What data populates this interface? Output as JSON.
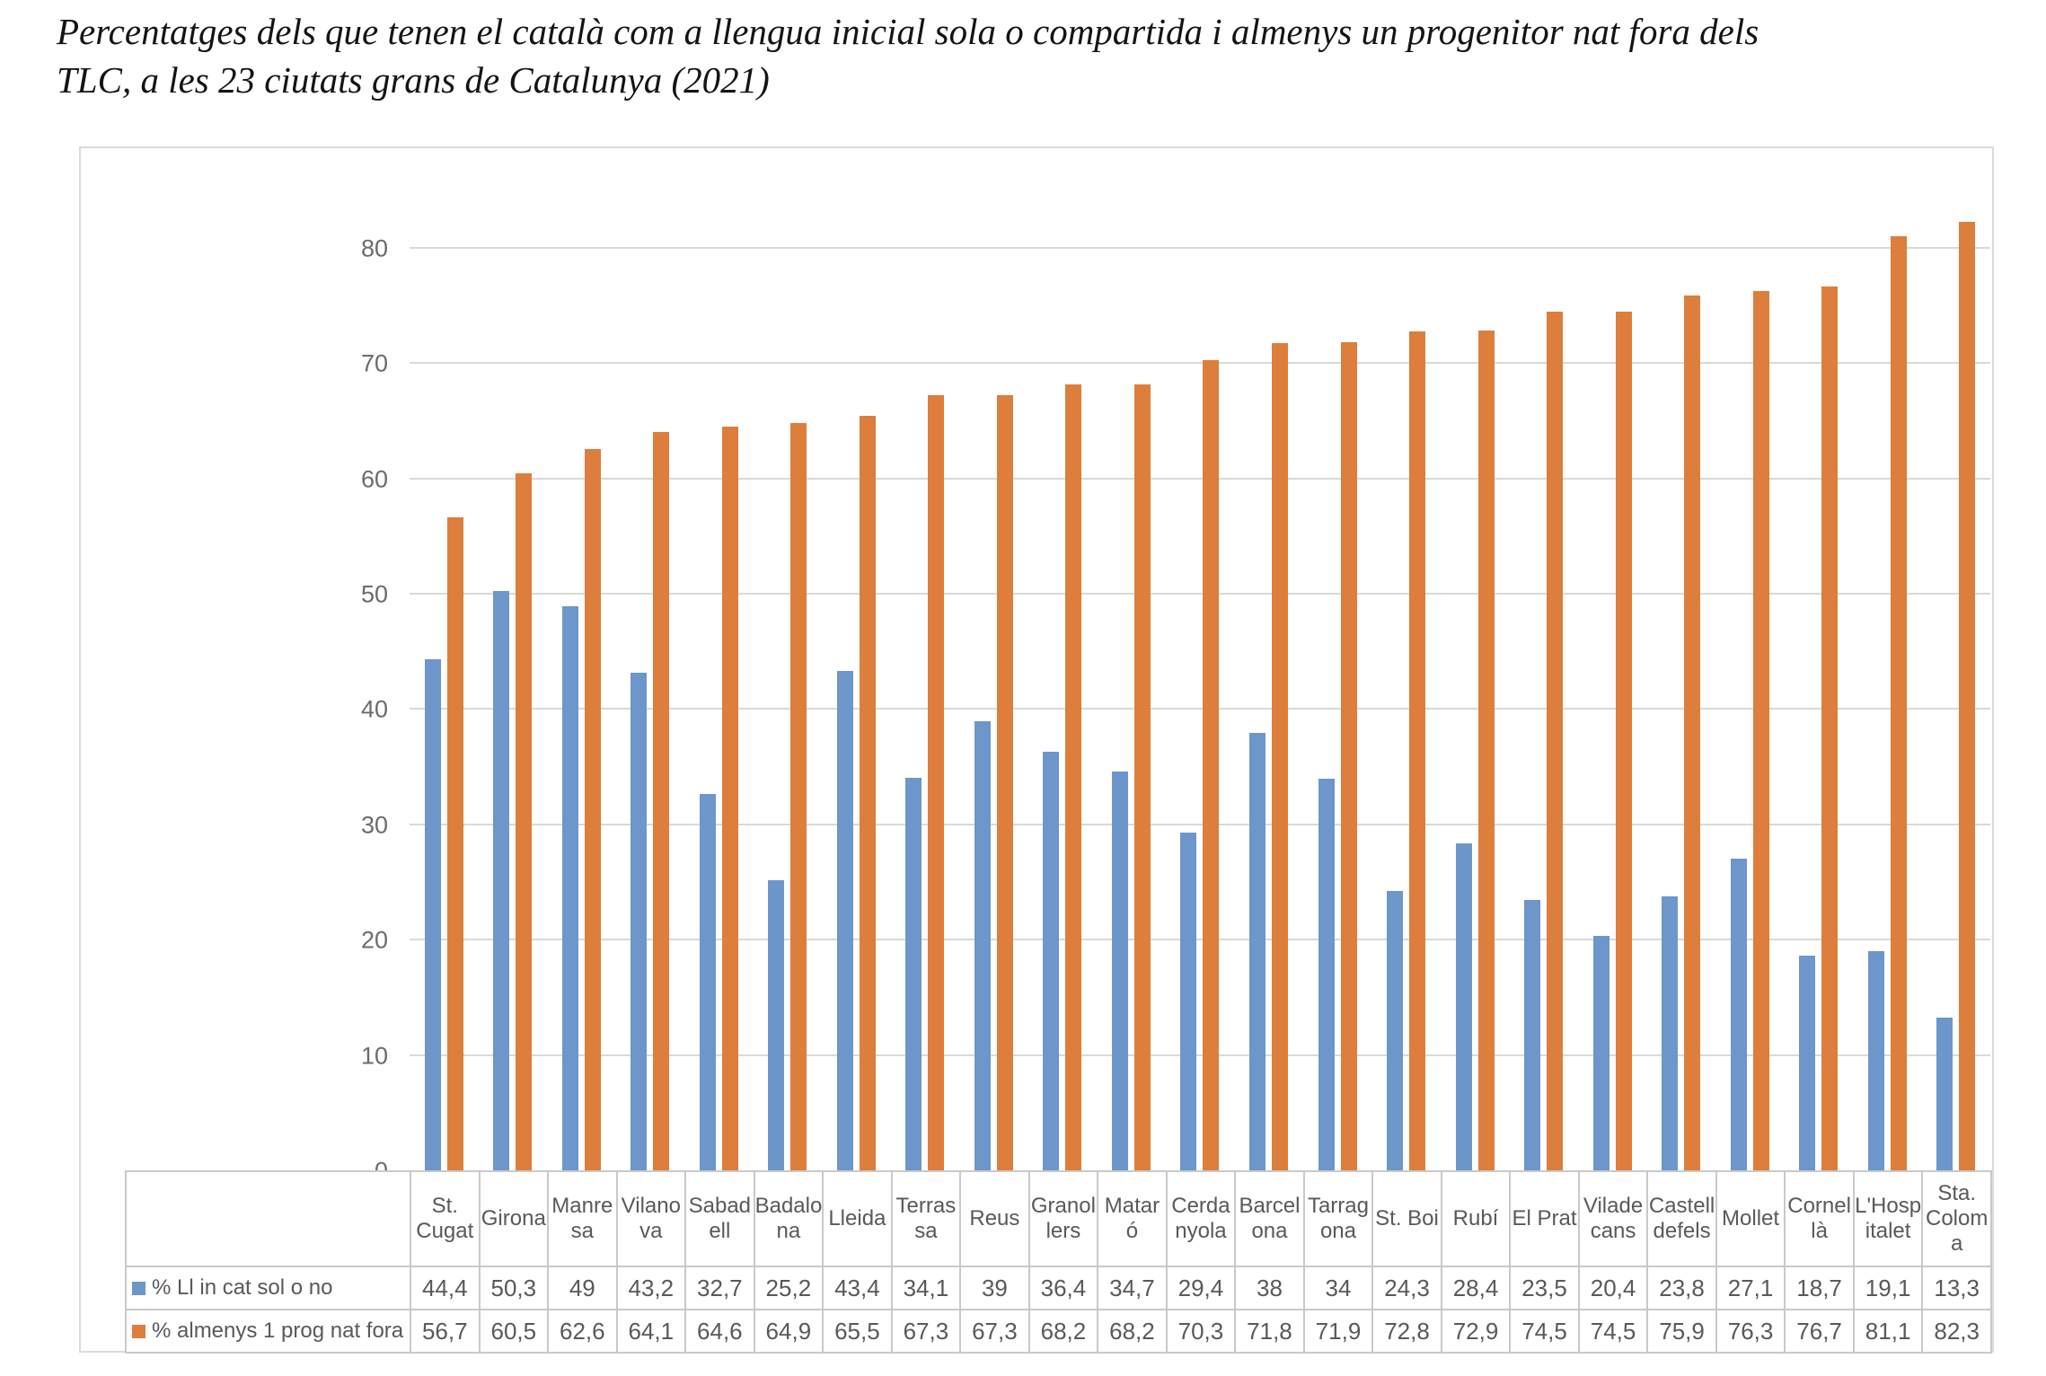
{
  "title": {
    "line1": "Percentatges dels que tenen el català com a llengua inicial sola o compartida i almenys un progenitor nat fora dels",
    "line2": "TLC, a les 23 ciutats grans de Catalunya (2021)"
  },
  "chart_data": {
    "type": "bar",
    "title": "Percentatges dels que tenen el català com a llengua inicial sola o compartida i almenys un progenitor nat fora dels TLC, a les 23 ciutats grans de Catalunya (2021)",
    "categories": [
      "St. Cugat",
      "Girona",
      "Manresa",
      "Vilanova",
      "Sabadell",
      "Badalona",
      "Lleida",
      "Terrassa",
      "Reus",
      "Granollers",
      "Mataró",
      "Cerdanyola",
      "Barcelona",
      "Tarragona",
      "St. Boi",
      "Rubí",
      "El Prat",
      "Viladecans",
      "Castelldefels",
      "Mollet",
      "Cornellà",
      "L'Hospitalet",
      "Sta. Coloma"
    ],
    "categories_display_lines": [
      [
        "St.",
        "Cugat"
      ],
      [
        "Girona"
      ],
      [
        "Manre",
        "sa"
      ],
      [
        "Vilano",
        "va"
      ],
      [
        "Sabad",
        "ell"
      ],
      [
        "Badalo",
        "na"
      ],
      [
        "Lleida"
      ],
      [
        "Terras",
        "sa"
      ],
      [
        "Reus"
      ],
      [
        "Granol",
        "lers"
      ],
      [
        "Matar",
        "ó"
      ],
      [
        "Cerda",
        "nyola"
      ],
      [
        "Barcel",
        "ona"
      ],
      [
        "Tarrag",
        "ona"
      ],
      [
        "St. Boi"
      ],
      [
        "Rubí"
      ],
      [
        "El Prat"
      ],
      [
        "Vilade",
        "cans"
      ],
      [
        "Castell",
        "defels"
      ],
      [
        "Mollet"
      ],
      [
        "Cornel",
        "là"
      ],
      [
        "L'Hosp",
        "italet"
      ],
      [
        "Sta.",
        "Colom",
        "a"
      ]
    ],
    "series": [
      {
        "name": "% Ll in cat sol o no",
        "color": "#6d96cb",
        "values": [
          44.4,
          50.3,
          49,
          43.2,
          32.7,
          25.2,
          43.4,
          34.1,
          39,
          36.4,
          34.7,
          29.4,
          38,
          34,
          24.3,
          28.4,
          23.5,
          20.4,
          23.8,
          27.1,
          18.7,
          19.1,
          13.3
        ]
      },
      {
        "name": "% almenys 1 prog nat fora",
        "color": "#dd7e3c",
        "values": [
          56.7,
          60.5,
          62.6,
          64.1,
          64.6,
          64.9,
          65.5,
          67.3,
          67.3,
          68.2,
          68.2,
          70.3,
          71.8,
          71.9,
          72.8,
          72.9,
          74.5,
          74.5,
          75.9,
          76.3,
          76.7,
          81.1,
          82.3
        ]
      }
    ],
    "y_axis": {
      "ticks": [
        0,
        10,
        20,
        30,
        40,
        50,
        60,
        70,
        80
      ],
      "ylim": [
        0,
        87
      ],
      "grid": true
    },
    "legend": {
      "position": "table-left"
    },
    "number_format": "decimal-comma"
  },
  "colors": {
    "series1": "#6d96cb",
    "series2": "#dd7e3c",
    "gridline": "#d9d9d9",
    "table_border": "#c9c9c9",
    "text": "#595959"
  }
}
